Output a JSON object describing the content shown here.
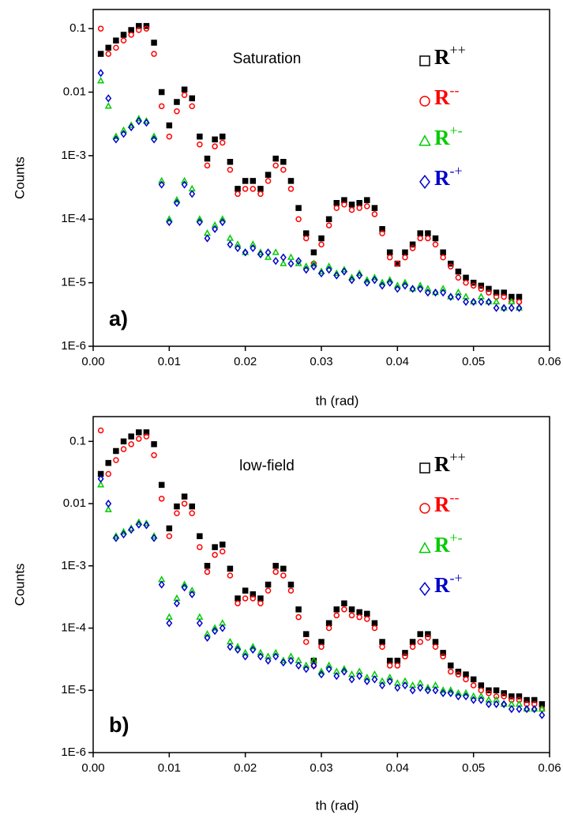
{
  "chart_data": [
    {
      "type": "scatter",
      "annotation": "Saturation",
      "panel_label": "a)",
      "xlabel": "th (rad)",
      "ylabel": "Counts",
      "log_y": true,
      "legend": "upper right",
      "xlim": [
        0,
        0.06
      ],
      "ylim": [
        1e-06,
        0.2
      ],
      "xticks": [
        {
          "value": 0,
          "label": "0.00"
        },
        0.01,
        0.02,
        0.03,
        0.04,
        0.05,
        0.06
      ],
      "yticks": [
        {
          "value": 1e-06,
          "label": "1E-6"
        },
        {
          "value": 1e-05,
          "label": "1E-5"
        },
        {
          "value": 0.0001,
          "label": "1E-4"
        },
        {
          "value": 0.001,
          "label": "1E-3"
        },
        0.01,
        0.1
      ],
      "x": [
        0.001,
        0.002,
        0.003,
        0.004,
        0.005,
        0.006,
        0.007,
        0.008,
        0.009,
        0.01,
        0.011,
        0.012,
        0.013,
        0.014,
        0.015,
        0.016,
        0.017,
        0.018,
        0.019,
        0.02,
        0.021,
        0.022,
        0.023,
        0.024,
        0.025,
        0.026,
        0.027,
        0.028,
        0.029,
        0.03,
        0.031,
        0.032,
        0.033,
        0.034,
        0.035,
        0.036,
        0.037,
        0.038,
        0.039,
        0.04,
        0.041,
        0.042,
        0.043,
        0.044,
        0.045,
        0.046,
        0.047,
        0.048,
        0.049,
        0.05,
        0.051,
        0.052,
        0.053,
        0.054,
        0.055,
        0.056
      ],
      "series": [
        {
          "name": "R++",
          "color": "#000000",
          "marker": "square",
          "values": [
            0.04,
            0.05,
            0.065,
            0.08,
            0.095,
            0.11,
            0.11,
            0.06,
            0.01,
            0.003,
            0.007,
            0.011,
            0.008,
            0.002,
            0.0009,
            0.0018,
            0.002,
            0.0008,
            0.0003,
            0.0004,
            0.0004,
            0.0003,
            0.0005,
            0.0009,
            0.0008,
            0.0004,
            0.00015,
            6e-05,
            3e-05,
            5e-05,
            0.0001,
            0.00018,
            0.0002,
            0.00017,
            0.00018,
            0.0002,
            0.00015,
            7e-05,
            3e-05,
            2e-05,
            3e-05,
            4e-05,
            6e-05,
            6e-05,
            5e-05,
            3e-05,
            2e-05,
            1.5e-05,
            1.2e-05,
            1e-05,
            9e-06,
            8e-06,
            7e-06,
            7e-06,
            6e-06,
            6e-06
          ]
        },
        {
          "name": "R--",
          "color": "#ff0000",
          "marker": "circle",
          "values": [
            0.1,
            0.04,
            0.05,
            0.065,
            0.08,
            0.095,
            0.1,
            0.04,
            0.006,
            0.002,
            0.005,
            0.009,
            0.006,
            0.0015,
            0.0007,
            0.0014,
            0.0016,
            0.0006,
            0.00025,
            0.0003,
            0.0003,
            0.00025,
            0.0004,
            0.0007,
            0.0006,
            0.0003,
            0.0001,
            5e-05,
            2e-05,
            4e-05,
            8e-05,
            0.00015,
            0.00017,
            0.00014,
            0.00015,
            0.00016,
            0.00012,
            6e-05,
            2.5e-05,
            2e-05,
            2.5e-05,
            3.5e-05,
            5e-05,
            5e-05,
            4e-05,
            2.5e-05,
            1.8e-05,
            1.2e-05,
            1e-05,
            9e-06,
            8e-06,
            7e-06,
            6e-06,
            6e-06,
            5e-06,
            5e-06
          ]
        },
        {
          "name": "R+-",
          "color": "#00cc00",
          "marker": "triangle",
          "values": [
            0.015,
            0.006,
            0.002,
            0.0025,
            0.003,
            0.0038,
            0.0035,
            0.002,
            0.0004,
            0.0001,
            0.0002,
            0.0004,
            0.0003,
            0.0001,
            6e-05,
            8e-05,
            0.0001,
            5e-05,
            4e-05,
            3e-05,
            4e-05,
            3e-05,
            2.5e-05,
            3e-05,
            2e-05,
            2.5e-05,
            2e-05,
            1.8e-05,
            2e-05,
            1.5e-05,
            1.8e-05,
            1.4e-05,
            1.6e-05,
            1.2e-05,
            1.4e-05,
            1.1e-05,
            1.2e-05,
            1e-05,
            1.1e-05,
            9e-06,
            1e-05,
            8e-06,
            9e-06,
            8e-06,
            7e-06,
            8e-06,
            6e-06,
            7e-06,
            6e-06,
            5e-06,
            6e-06,
            5e-06,
            5e-06,
            4e-06,
            5e-06,
            4e-06
          ]
        },
        {
          "name": "R-+",
          "color": "#0000cc",
          "marker": "diamond",
          "values": [
            0.02,
            0.008,
            0.0018,
            0.0022,
            0.0028,
            0.0035,
            0.0033,
            0.0018,
            0.00035,
            9e-05,
            0.00018,
            0.00035,
            0.00025,
            9e-05,
            5e-05,
            7e-05,
            9e-05,
            4e-05,
            3.5e-05,
            3e-05,
            3.5e-05,
            2.8e-05,
            3e-05,
            2.2e-05,
            2.5e-05,
            2e-05,
            2.2e-05,
            1.6e-05,
            1.8e-05,
            1.4e-05,
            1.6e-05,
            1.3e-05,
            1.5e-05,
            1.1e-05,
            1.3e-05,
            1e-05,
            1.1e-05,
            9e-06,
            1e-05,
            8e-06,
            9e-06,
            8e-06,
            8e-06,
            7e-06,
            7e-06,
            7e-06,
            6e-06,
            6e-06,
            5e-06,
            5e-06,
            5e-06,
            5e-06,
            4e-06,
            4e-06,
            4e-06,
            4e-06
          ]
        }
      ]
    },
    {
      "type": "scatter",
      "annotation": "low-field",
      "panel_label": "b)",
      "xlabel": "th (rad)",
      "ylabel": "Counts",
      "log_y": true,
      "legend": "upper right",
      "xlim": [
        0,
        0.06
      ],
      "ylim": [
        1e-06,
        0.25
      ],
      "xticks": [
        {
          "value": 0,
          "label": "0.00"
        },
        0.01,
        0.02,
        0.03,
        0.04,
        0.05,
        0.06
      ],
      "yticks": [
        {
          "value": 1e-06,
          "label": "1E-6"
        },
        {
          "value": 1e-05,
          "label": "1E-5"
        },
        {
          "value": 0.0001,
          "label": "1E-4"
        },
        {
          "value": 0.001,
          "label": "1E-3"
        },
        0.01,
        0.1
      ],
      "x": [
        0.001,
        0.002,
        0.003,
        0.004,
        0.005,
        0.006,
        0.007,
        0.008,
        0.009,
        0.01,
        0.011,
        0.012,
        0.013,
        0.014,
        0.015,
        0.016,
        0.017,
        0.018,
        0.019,
        0.02,
        0.021,
        0.022,
        0.023,
        0.024,
        0.025,
        0.026,
        0.027,
        0.028,
        0.029,
        0.03,
        0.031,
        0.032,
        0.033,
        0.034,
        0.035,
        0.036,
        0.037,
        0.038,
        0.039,
        0.04,
        0.041,
        0.042,
        0.043,
        0.044,
        0.045,
        0.046,
        0.047,
        0.048,
        0.049,
        0.05,
        0.051,
        0.052,
        0.053,
        0.054,
        0.055,
        0.056,
        0.057,
        0.058,
        0.059
      ],
      "series": [
        {
          "name": "R++",
          "color": "#000000",
          "marker": "square",
          "values": [
            0.03,
            0.045,
            0.07,
            0.1,
            0.12,
            0.14,
            0.14,
            0.09,
            0.02,
            0.004,
            0.009,
            0.013,
            0.009,
            0.003,
            0.001,
            0.002,
            0.0022,
            0.0009,
            0.0003,
            0.0004,
            0.00035,
            0.0003,
            0.0005,
            0.001,
            0.0009,
            0.0005,
            0.0002,
            8e-05,
            3e-05,
            6e-05,
            0.00012,
            0.0002,
            0.00025,
            0.0002,
            0.00018,
            0.00017,
            0.00012,
            6e-05,
            3e-05,
            3e-05,
            4e-05,
            6e-05,
            8e-05,
            8e-05,
            6e-05,
            4e-05,
            2.5e-05,
            2e-05,
            1.8e-05,
            1.5e-05,
            1.2e-05,
            1e-05,
            1e-05,
            9e-06,
            8e-06,
            8e-06,
            7e-06,
            7e-06,
            6e-06
          ]
        },
        {
          "name": "R--",
          "color": "#ff0000",
          "marker": "circle",
          "values": [
            0.15,
            0.03,
            0.05,
            0.075,
            0.09,
            0.11,
            0.12,
            0.06,
            0.012,
            0.003,
            0.007,
            0.01,
            0.007,
            0.002,
            0.0008,
            0.0015,
            0.0017,
            0.0007,
            0.00025,
            0.0003,
            0.0003,
            0.00025,
            0.0004,
            0.0008,
            0.0007,
            0.0004,
            0.00015,
            6e-05,
            2.5e-05,
            5e-05,
            0.0001,
            0.00016,
            0.0002,
            0.00016,
            0.00015,
            0.00014,
            0.0001,
            5e-05,
            2.5e-05,
            2.5e-05,
            3.5e-05,
            5e-05,
            6e-05,
            7e-05,
            5e-05,
            3.5e-05,
            2e-05,
            1.8e-05,
            1.5e-05,
            1.2e-05,
            1e-05,
            9e-06,
            8e-06,
            8e-06,
            7e-06,
            7e-06,
            6e-06,
            6e-06,
            5e-06
          ]
        },
        {
          "name": "R+-",
          "color": "#00cc00",
          "marker": "triangle",
          "values": [
            0.02,
            0.008,
            0.003,
            0.0035,
            0.004,
            0.005,
            0.0048,
            0.003,
            0.0006,
            0.00015,
            0.0003,
            0.0005,
            0.0004,
            0.00015,
            8e-05,
            0.0001,
            0.00012,
            6e-05,
            5e-05,
            4e-05,
            5e-05,
            4e-05,
            3.5e-05,
            4e-05,
            3e-05,
            3.5e-05,
            3e-05,
            2.5e-05,
            3e-05,
            2e-05,
            2.5e-05,
            2e-05,
            2.2e-05,
            1.8e-05,
            2e-05,
            1.6e-05,
            1.8e-05,
            1.4e-05,
            1.6e-05,
            1.3e-05,
            1.4e-05,
            1.2e-05,
            1.3e-05,
            1.1e-05,
            1.2e-05,
            1e-05,
            1e-05,
            9e-06,
            9e-06,
            8e-06,
            8e-06,
            7e-06,
            7e-06,
            6e-06,
            6e-06,
            6e-06,
            5e-06,
            5e-06,
            5e-06
          ]
        },
        {
          "name": "R-+",
          "color": "#0000cc",
          "marker": "diamond",
          "values": [
            0.025,
            0.01,
            0.0028,
            0.0032,
            0.0038,
            0.0046,
            0.0045,
            0.0028,
            0.0005,
            0.00012,
            0.00025,
            0.00045,
            0.00035,
            0.00012,
            7e-05,
            9e-05,
            0.0001,
            5e-05,
            4.5e-05,
            3.5e-05,
            4.5e-05,
            3.5e-05,
            3e-05,
            3.5e-05,
            2.8e-05,
            3e-05,
            2.5e-05,
            2.2e-05,
            2.5e-05,
            1.8e-05,
            2.2e-05,
            1.7e-05,
            2e-05,
            1.5e-05,
            1.7e-05,
            1.4e-05,
            1.5e-05,
            1.2e-05,
            1.4e-05,
            1.1e-05,
            1.2e-05,
            1e-05,
            1.1e-05,
            1e-05,
            1e-05,
            9e-06,
            9e-06,
            8e-06,
            8e-06,
            7e-06,
            7e-06,
            6e-06,
            6e-06,
            6e-06,
            5e-06,
            5e-06,
            5e-06,
            5e-06,
            4e-06
          ]
        }
      ]
    }
  ]
}
